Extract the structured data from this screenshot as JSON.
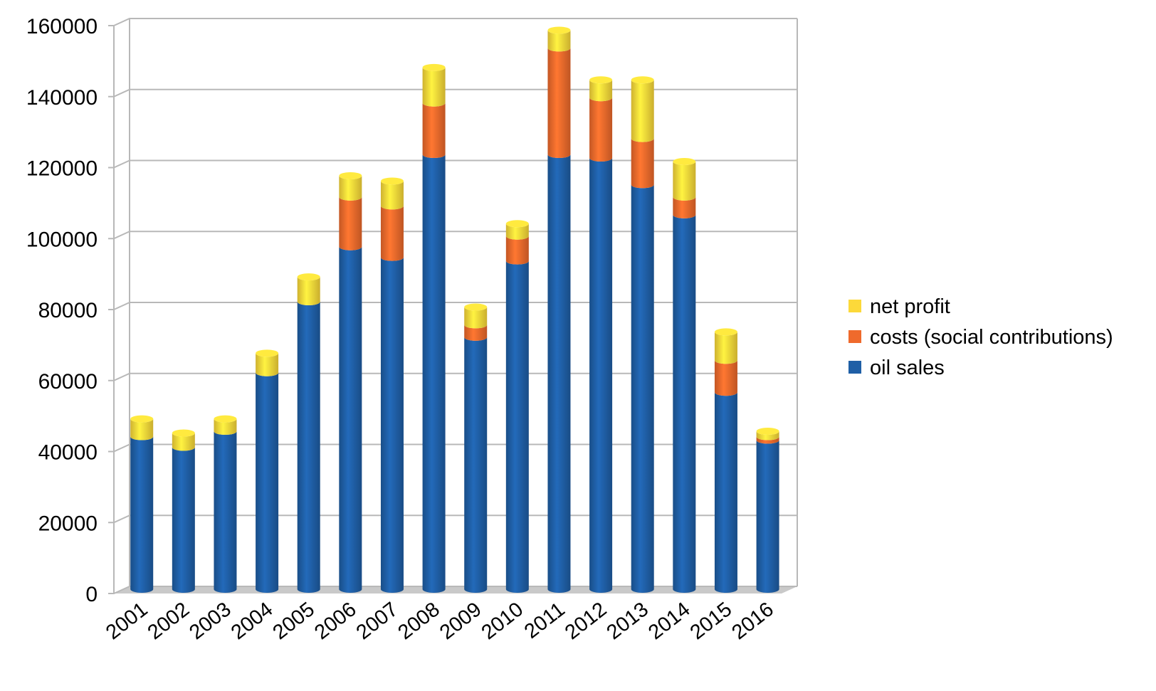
{
  "chart_data": {
    "type": "bar",
    "stacked": true,
    "style_3d": "cylinder",
    "categories": [
      "2001",
      "2002",
      "2003",
      "2004",
      "2005",
      "2006",
      "2007",
      "2008",
      "2009",
      "2010",
      "2011",
      "2012",
      "2013",
      "2014",
      "2015",
      "2016"
    ],
    "series": [
      {
        "name": "oil sales",
        "color": "#1f5fa6",
        "values": [
          43000,
          40000,
          44500,
          61000,
          81000,
          96500,
          93500,
          122500,
          71000,
          92500,
          122500,
          121500,
          114000,
          105500,
          55500,
          42000
        ]
      },
      {
        "name": "costs (social contributions)",
        "color": "#ef6a2c",
        "values": [
          0,
          0,
          0,
          0,
          0,
          14000,
          14500,
          14500,
          3500,
          7000,
          30000,
          17000,
          13000,
          5000,
          9000,
          1000
        ]
      },
      {
        "name": "net profit",
        "color": "#fcd93a",
        "values": [
          5000,
          4000,
          3500,
          5500,
          7000,
          6000,
          7000,
          10000,
          5000,
          3500,
          5000,
          5000,
          16500,
          10000,
          8000,
          1500
        ]
      }
    ],
    "legend_order": [
      "net profit",
      "costs (social contributions)",
      "oil sales"
    ],
    "ylim": [
      0,
      160000
    ],
    "yticks": [
      0,
      20000,
      40000,
      60000,
      80000,
      100000,
      120000,
      140000,
      160000
    ],
    "title": "",
    "xlabel": "",
    "ylabel": "",
    "grid": true,
    "legend_position": "right"
  }
}
